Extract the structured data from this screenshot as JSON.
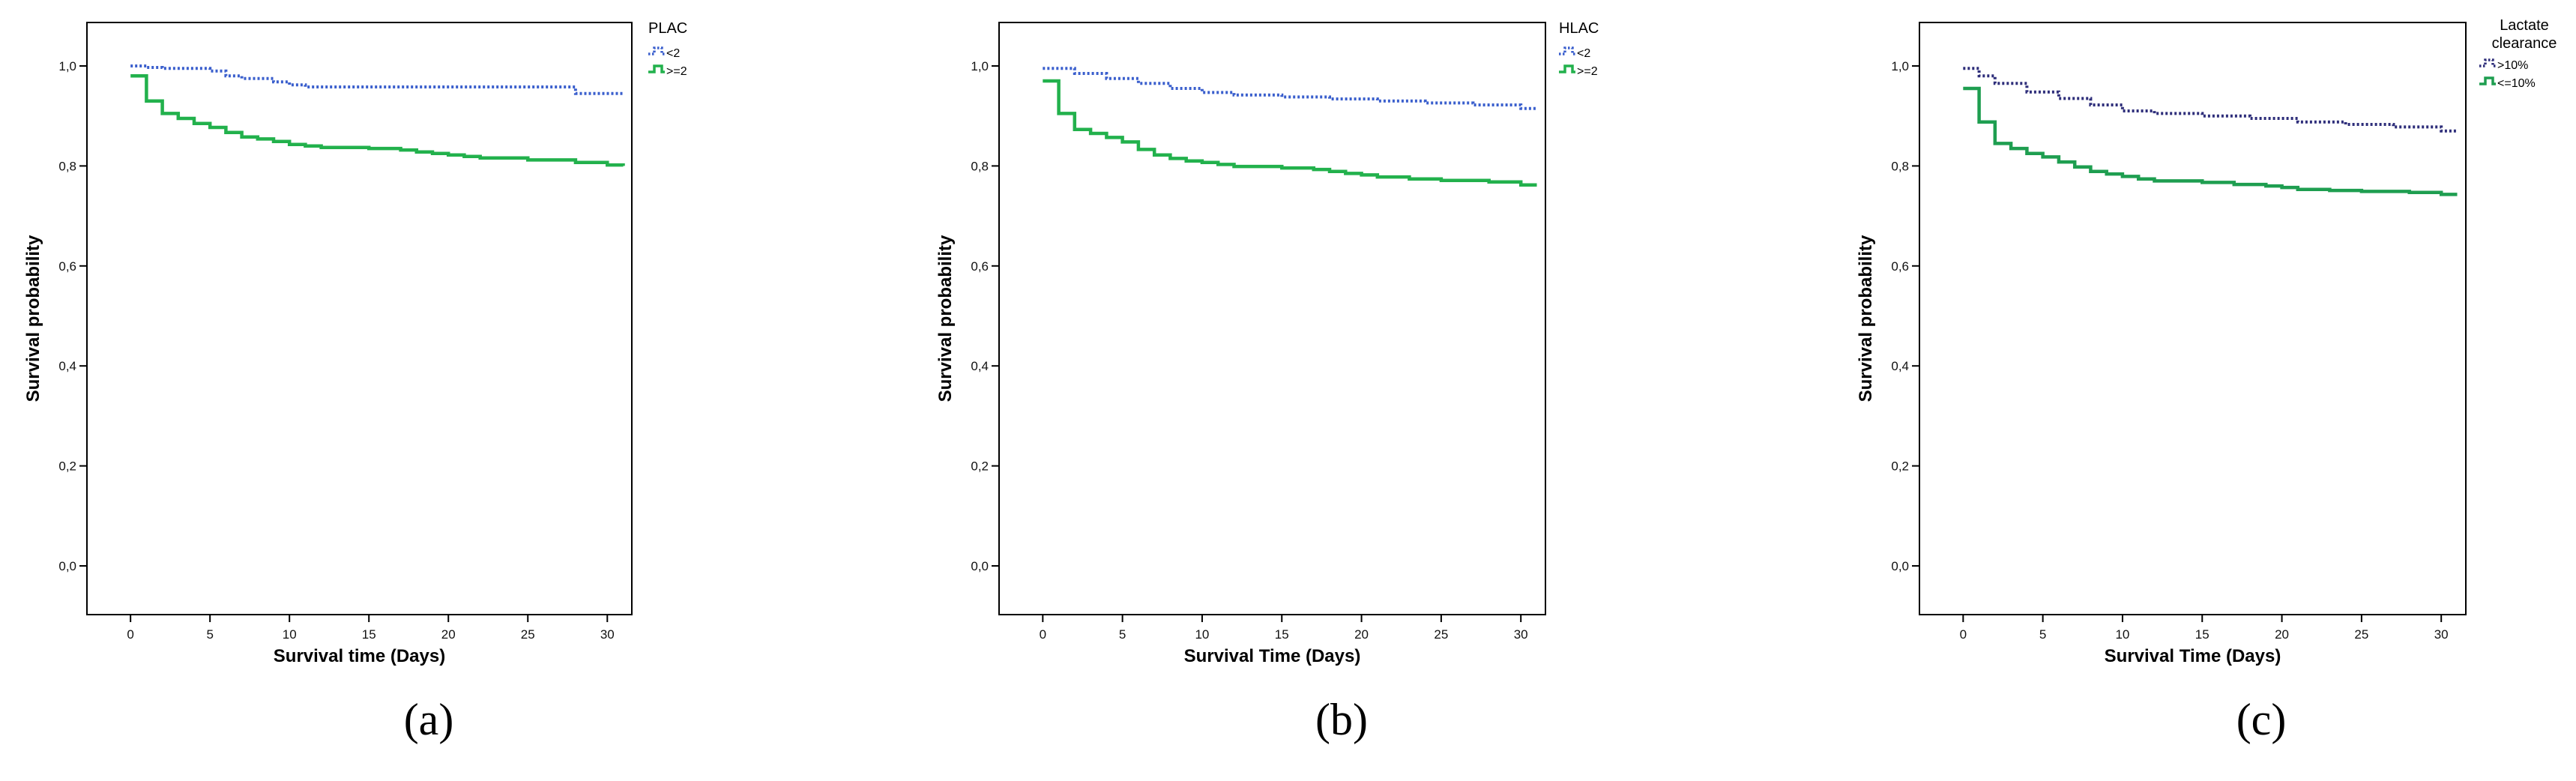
{
  "chart_data": [
    {
      "type": "line",
      "panel_label": "(a)",
      "xlabel": "Survival time (Days)",
      "ylabel": "Survival probability",
      "xlim": [
        0,
        31
      ],
      "ylim": [
        0,
        1
      ],
      "x_ticks": [
        "0",
        "5",
        "10",
        "15",
        "20",
        "25",
        "30"
      ],
      "y_ticks": [
        "0,0",
        "0,2",
        "0,4",
        "0,6",
        "0,8",
        "1,0"
      ],
      "legend_title": "PLAC",
      "legend_position": "right",
      "grid": false,
      "series": [
        {
          "name": "<2",
          "color": "#3a5fcd",
          "style": "dotted",
          "x": [
            0,
            1,
            2,
            5,
            6,
            7,
            9,
            10,
            11,
            28,
            31
          ],
          "y": [
            1.0,
            0.997,
            0.995,
            0.99,
            0.98,
            0.975,
            0.968,
            0.962,
            0.958,
            0.945,
            0.945
          ]
        },
        {
          "name": ">=2",
          "color": "#22b14c",
          "style": "solid",
          "x": [
            0,
            1,
            2,
            3,
            4,
            5,
            6,
            7,
            8,
            9,
            10,
            11,
            12,
            15,
            17,
            18,
            19,
            20,
            21,
            22,
            25,
            28,
            30,
            31
          ],
          "y": [
            0.98,
            0.93,
            0.905,
            0.895,
            0.885,
            0.877,
            0.867,
            0.858,
            0.854,
            0.849,
            0.843,
            0.84,
            0.837,
            0.835,
            0.832,
            0.828,
            0.825,
            0.822,
            0.819,
            0.816,
            0.812,
            0.807,
            0.802,
            0.8
          ]
        }
      ]
    },
    {
      "type": "line",
      "panel_label": "(b)",
      "xlabel": "Survival Time (Days)",
      "ylabel": "Survival probability",
      "xlim": [
        0,
        31
      ],
      "ylim": [
        0,
        1
      ],
      "x_ticks": [
        "0",
        "5",
        "10",
        "15",
        "20",
        "25",
        "30"
      ],
      "y_ticks": [
        "0,0",
        "0,2",
        "0,4",
        "0,6",
        "0,8",
        "1,0"
      ],
      "legend_title": "HLAC",
      "legend_position": "right",
      "grid": false,
      "series": [
        {
          "name": "<2",
          "color": "#3a5fcd",
          "style": "dotted",
          "x": [
            0,
            2,
            4,
            6,
            8,
            10,
            12,
            15,
            18,
            21,
            24,
            27,
            30,
            31
          ],
          "y": [
            0.995,
            0.985,
            0.975,
            0.965,
            0.955,
            0.947,
            0.942,
            0.938,
            0.934,
            0.93,
            0.926,
            0.922,
            0.915,
            0.915
          ]
        },
        {
          "name": ">=2",
          "color": "#22b14c",
          "style": "solid",
          "x": [
            0,
            1,
            2,
            3,
            4,
            5,
            6,
            7,
            8,
            9,
            10,
            11,
            12,
            15,
            17,
            18,
            19,
            20,
            21,
            23,
            25,
            28,
            30,
            31
          ],
          "y": [
            0.97,
            0.905,
            0.873,
            0.865,
            0.857,
            0.848,
            0.833,
            0.822,
            0.815,
            0.81,
            0.807,
            0.803,
            0.799,
            0.796,
            0.793,
            0.789,
            0.785,
            0.782,
            0.778,
            0.774,
            0.771,
            0.768,
            0.762,
            0.762
          ]
        }
      ]
    },
    {
      "type": "line",
      "panel_label": "(c)",
      "xlabel": "Survival Time (Days)",
      "ylabel": "Survival probability",
      "xlim": [
        0,
        31
      ],
      "ylim": [
        0,
        1
      ],
      "x_ticks": [
        "0",
        "5",
        "10",
        "15",
        "20",
        "25",
        "30"
      ],
      "y_ticks": [
        "0,0",
        "0,2",
        "0,4",
        "0,6",
        "0,8",
        "1,0"
      ],
      "legend_title": "Lactate clearance",
      "legend_position": "right",
      "grid": false,
      "series": [
        {
          "name": ">10%",
          "color": "#2e2e7a",
          "style": "dotted",
          "x": [
            0,
            1,
            2,
            4,
            6,
            8,
            10,
            12,
            15,
            18,
            21,
            24,
            27,
            30,
            31
          ],
          "y": [
            0.995,
            0.98,
            0.965,
            0.948,
            0.935,
            0.922,
            0.91,
            0.905,
            0.9,
            0.895,
            0.888,
            0.883,
            0.878,
            0.87,
            0.87
          ]
        },
        {
          "name": "<=10%",
          "color": "#1e9e50",
          "style": "solid",
          "x": [
            0,
            1,
            2,
            3,
            4,
            5,
            6,
            7,
            8,
            9,
            10,
            11,
            12,
            15,
            17,
            19,
            20,
            21,
            23,
            25,
            28,
            30,
            31
          ],
          "y": [
            0.955,
            0.888,
            0.845,
            0.835,
            0.825,
            0.818,
            0.808,
            0.798,
            0.789,
            0.784,
            0.779,
            0.774,
            0.77,
            0.767,
            0.763,
            0.76,
            0.757,
            0.753,
            0.751,
            0.749,
            0.747,
            0.743,
            0.743
          ]
        }
      ]
    }
  ]
}
